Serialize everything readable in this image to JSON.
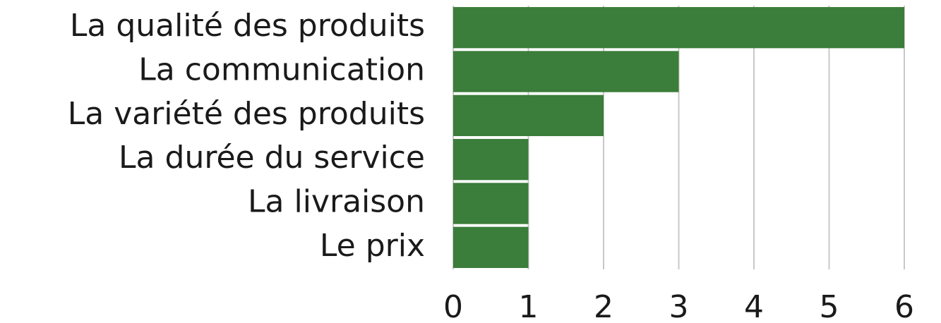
{
  "chart_data": {
    "type": "bar",
    "orientation": "horizontal",
    "categories": [
      "La qualité des produits",
      "La communication",
      "La variété des produits",
      "La durée du service",
      "La livraison",
      "Le prix"
    ],
    "values": [
      6,
      3,
      2,
      1,
      1,
      1
    ],
    "color": "#3b7d3a",
    "xlim": [
      0,
      6
    ],
    "xticks": [
      0,
      1,
      2,
      3,
      4,
      5,
      6
    ],
    "grid": true
  }
}
